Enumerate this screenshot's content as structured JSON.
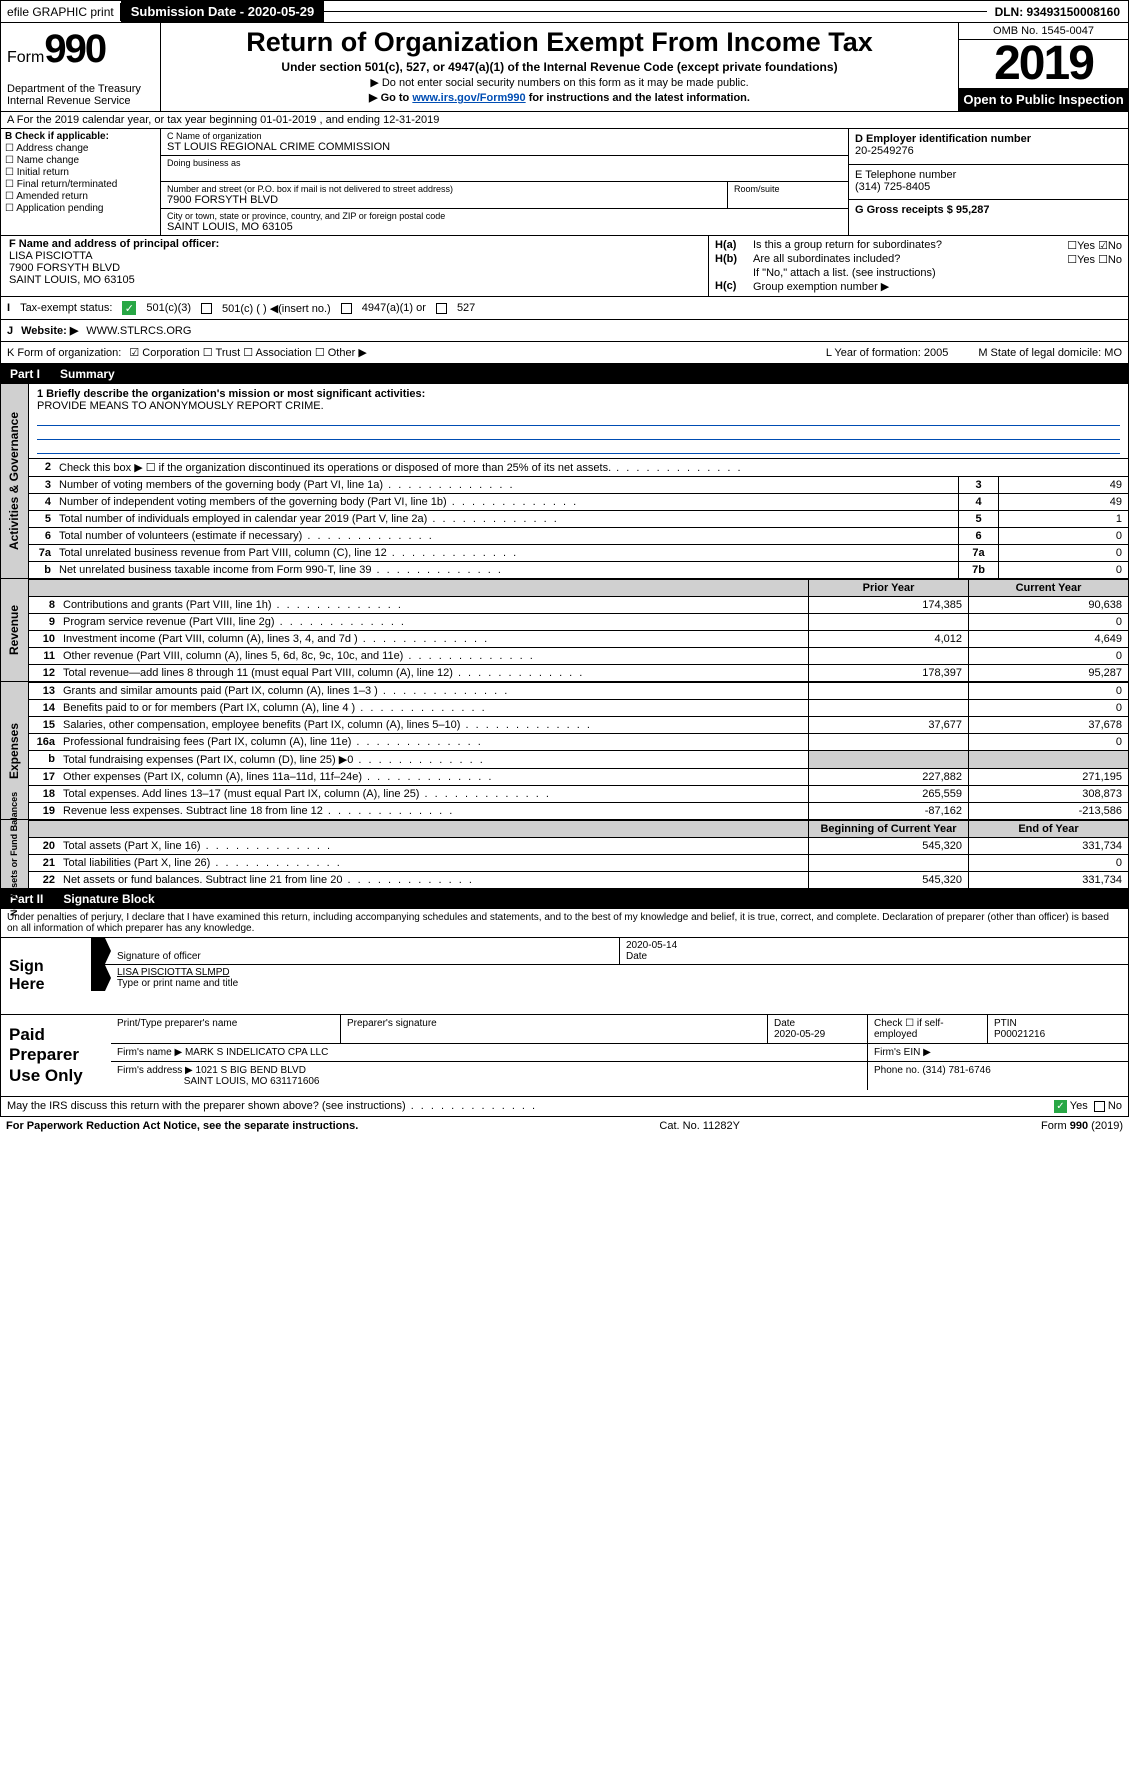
{
  "topbar": {
    "efile": "efile GRAPHIC print",
    "submission": "Submission Date - 2020-05-29",
    "dln": "DLN: 93493150008160"
  },
  "header": {
    "form_prefix": "Form",
    "form_num": "990",
    "dept": "Department of the Treasury",
    "irs": "Internal Revenue Service",
    "title": "Return of Organization Exempt From Income Tax",
    "sub1": "Under section 501(c), 527, or 4947(a)(1) of the Internal Revenue Code (except private foundations)",
    "sub2": "▶ Do not enter social security numbers on this form as it may be made public.",
    "sub3_pre": "▶ Go to ",
    "sub3_link": "www.irs.gov/Form990",
    "sub3_post": " for instructions and the latest information.",
    "omb": "OMB No. 1545-0047",
    "year": "2019",
    "open": "Open to Public Inspection"
  },
  "row_a": "A For the 2019 calendar year, or tax year beginning 01-01-2019  , and ending 12-31-2019",
  "col_b": {
    "title": "B Check if applicable:",
    "opts": [
      "☐ Address change",
      "☐ Name change",
      "☐ Initial return",
      "☐ Final return/terminated",
      "☐ Amended return",
      "☐ Application pending"
    ]
  },
  "col_c": {
    "name_lbl": "C Name of organization",
    "name": "ST LOUIS REGIONAL CRIME COMMISSION",
    "dba_lbl": "Doing business as",
    "addr_lbl": "Number and street (or P.O. box if mail is not delivered to street address)",
    "room_lbl": "Room/suite",
    "addr": "7900 FORSYTH BLVD",
    "city_lbl": "City or town, state or province, country, and ZIP or foreign postal code",
    "city": "SAINT LOUIS, MO  63105"
  },
  "col_de": {
    "d_lbl": "D Employer identification number",
    "d_val": "20-2549276",
    "e_lbl": "E Telephone number",
    "e_val": "(314) 725-8405",
    "g_lbl": "G Gross receipts $ 95,287"
  },
  "col_f": {
    "lbl": "F  Name and address of principal officer:",
    "name": "LISA PISCIOTTA",
    "addr1": "7900 FORSYTH BLVD",
    "addr2": "SAINT LOUIS, MO  63105"
  },
  "col_h": {
    "ha": "Is this a group return for subordinates?",
    "ha_ans": "☐Yes ☑No",
    "hb": "Are all subordinates included?",
    "hb_ans": "☐Yes ☐No",
    "hb_note": "If \"No,\" attach a list. (see instructions)",
    "hc": "Group exemption number ▶"
  },
  "tax_status": {
    "lbl": "Tax-exempt status:",
    "o1": "501(c)(3)",
    "o2": "501(c) (  ) ◀(insert no.)",
    "o3": "4947(a)(1) or",
    "o4": "527"
  },
  "j": {
    "lbl": "J",
    "t": "Website: ▶",
    "v": "WWW.STLRCS.ORG"
  },
  "k": {
    "lbl": "K Form of organization:",
    "opts": "☑ Corporation  ☐ Trust  ☐ Association  ☐ Other ▶",
    "l": "L Year of formation: 2005",
    "m": "M State of legal domicile: MO"
  },
  "part1": {
    "hdr": "Part I",
    "title": "Summary"
  },
  "mission": {
    "lbl": "1  Briefly describe the organization's mission or most significant activities:",
    "txt": "PROVIDE MEANS TO ANONYMOUSLY REPORT CRIME."
  },
  "gov_rows": [
    {
      "n": "2",
      "t": "Check this box ▶ ☐  if the organization discontinued its operations or disposed of more than 25% of its net assets.",
      "bn": "",
      "bv": ""
    },
    {
      "n": "3",
      "t": "Number of voting members of the governing body (Part VI, line 1a)",
      "bn": "3",
      "bv": "49"
    },
    {
      "n": "4",
      "t": "Number of independent voting members of the governing body (Part VI, line 1b)",
      "bn": "4",
      "bv": "49"
    },
    {
      "n": "5",
      "t": "Total number of individuals employed in calendar year 2019 (Part V, line 2a)",
      "bn": "5",
      "bv": "1"
    },
    {
      "n": "6",
      "t": "Total number of volunteers (estimate if necessary)",
      "bn": "6",
      "bv": "0"
    },
    {
      "n": "7a",
      "t": "Total unrelated business revenue from Part VIII, column (C), line 12",
      "bn": "7a",
      "bv": "0"
    },
    {
      "n": "b",
      "t": "Net unrelated business taxable income from Form 990-T, line 39",
      "bn": "7b",
      "bv": "0"
    }
  ],
  "col_hdrs": {
    "c1": "Prior Year",
    "c2": "Current Year"
  },
  "revenue": [
    {
      "n": "8",
      "t": "Contributions and grants (Part VIII, line 1h)",
      "v1": "174,385",
      "v2": "90,638"
    },
    {
      "n": "9",
      "t": "Program service revenue (Part VIII, line 2g)",
      "v1": "",
      "v2": "0"
    },
    {
      "n": "10",
      "t": "Investment income (Part VIII, column (A), lines 3, 4, and 7d )",
      "v1": "4,012",
      "v2": "4,649"
    },
    {
      "n": "11",
      "t": "Other revenue (Part VIII, column (A), lines 5, 6d, 8c, 9c, 10c, and 11e)",
      "v1": "",
      "v2": "0"
    },
    {
      "n": "12",
      "t": "Total revenue—add lines 8 through 11 (must equal Part VIII, column (A), line 12)",
      "v1": "178,397",
      "v2": "95,287"
    }
  ],
  "expenses": [
    {
      "n": "13",
      "t": "Grants and similar amounts paid (Part IX, column (A), lines 1–3 )",
      "v1": "",
      "v2": "0"
    },
    {
      "n": "14",
      "t": "Benefits paid to or for members (Part IX, column (A), line 4 )",
      "v1": "",
      "v2": "0"
    },
    {
      "n": "15",
      "t": "Salaries, other compensation, employee benefits (Part IX, column (A), lines 5–10)",
      "v1": "37,677",
      "v2": "37,678"
    },
    {
      "n": "16a",
      "t": "Professional fundraising fees (Part IX, column (A), line 11e)",
      "v1": "",
      "v2": "0"
    },
    {
      "n": "b",
      "t": "Total fundraising expenses (Part IX, column (D), line 25) ▶0",
      "v1": "—",
      "v2": "—"
    },
    {
      "n": "17",
      "t": "Other expenses (Part IX, column (A), lines 11a–11d, 11f–24e)",
      "v1": "227,882",
      "v2": "271,195"
    },
    {
      "n": "18",
      "t": "Total expenses. Add lines 13–17 (must equal Part IX, column (A), line 25)",
      "v1": "265,559",
      "v2": "308,873"
    },
    {
      "n": "19",
      "t": "Revenue less expenses. Subtract line 18 from line 12",
      "v1": "-87,162",
      "v2": "-213,586"
    }
  ],
  "net_hdrs": {
    "c1": "Beginning of Current Year",
    "c2": "End of Year"
  },
  "net": [
    {
      "n": "20",
      "t": "Total assets (Part X, line 16)",
      "v1": "545,320",
      "v2": "331,734"
    },
    {
      "n": "21",
      "t": "Total liabilities (Part X, line 26)",
      "v1": "",
      "v2": "0"
    },
    {
      "n": "22",
      "t": "Net assets or fund balances. Subtract line 21 from line 20",
      "v1": "545,320",
      "v2": "331,734"
    }
  ],
  "part2": {
    "hdr": "Part II",
    "title": "Signature Block"
  },
  "perjury": "Under penalties of perjury, I declare that I have examined this return, including accompanying schedules and statements, and to the best of my knowledge and belief, it is true, correct, and complete. Declaration of preparer (other than officer) is based on all information of which preparer has any knowledge.",
  "sign": {
    "lbl": "Sign Here",
    "date": "2020-05-14",
    "sig_lbl": "Signature of officer",
    "date_lbl": "Date",
    "name": "LISA PISCIOTTA  SLMPD",
    "name_lbl": "Type or print name and title"
  },
  "paid": {
    "lbl": "Paid Preparer Use Only",
    "h1": "Print/Type preparer's name",
    "h2": "Preparer's signature",
    "h3": "Date",
    "h3v": "2020-05-29",
    "h4": "Check ☐ if self-employed",
    "h5": "PTIN",
    "h5v": "P00021216",
    "firm_lbl": "Firm's name    ▶",
    "firm": "MARK S INDELICATO CPA LLC",
    "ein_lbl": "Firm's EIN ▶",
    "addr_lbl": "Firm's address ▶",
    "addr1": "1021 S BIG BEND BLVD",
    "addr2": "SAINT LOUIS, MO  631171606",
    "phone_lbl": "Phone no. (314) 781-6746"
  },
  "discuss": {
    "q": "May the IRS discuss this return with the preparer shown above? (see instructions)",
    "a": "☑ Yes  ☐ No"
  },
  "footer": {
    "l": "For Paperwork Reduction Act Notice, see the separate instructions.",
    "m": "Cat. No. 11282Y",
    "r": "Form 990 (2019)"
  }
}
